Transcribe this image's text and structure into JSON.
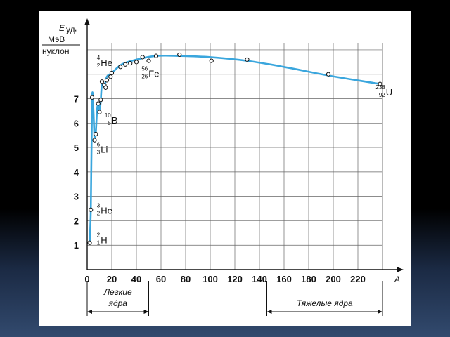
{
  "chart_data": {
    "type": "line",
    "ylabel": {
      "symbol": "E",
      "subscript": "уд",
      "suffix": ",",
      "unit_top": "МэВ",
      "unit_bottom": "нуклон"
    },
    "xlabel": "A",
    "xlim": [
      0,
      240
    ],
    "ylim": [
      0,
      9.2
    ],
    "x_ticks": [
      "0",
      "20",
      "40",
      "60",
      "80",
      "100",
      "120",
      "140",
      "160",
      "180",
      "200",
      "220"
    ],
    "x_tick_values": [
      0,
      20,
      40,
      60,
      80,
      100,
      120,
      140,
      160,
      180,
      200,
      220
    ],
    "y_ticks": [
      "1",
      "2",
      "3",
      "4",
      "5",
      "6",
      "7"
    ],
    "y_tick_values": [
      1,
      2,
      3,
      4,
      5,
      6,
      7
    ],
    "grid": true,
    "curve_color": "#3aa6dd",
    "curve": [
      {
        "x": 2,
        "y": 1.1
      },
      {
        "x": 3,
        "y": 2.6
      },
      {
        "x": 4,
        "y": 7.0
      },
      {
        "x": 5,
        "y": 6.6
      },
      {
        "x": 6,
        "y": 5.3
      },
      {
        "x": 7,
        "y": 5.6
      },
      {
        "x": 8,
        "y": 6.5
      },
      {
        "x": 9,
        "y": 6.8
      },
      {
        "x": 10,
        "y": 6.4
      },
      {
        "x": 11,
        "y": 6.9
      },
      {
        "x": 12,
        "y": 7.6
      },
      {
        "x": 14,
        "y": 7.5
      },
      {
        "x": 16,
        "y": 7.9
      },
      {
        "x": 20,
        "y": 8.05
      },
      {
        "x": 28,
        "y": 8.4
      },
      {
        "x": 40,
        "y": 8.6
      },
      {
        "x": 56,
        "y": 8.75
      },
      {
        "x": 75,
        "y": 8.75
      },
      {
        "x": 100,
        "y": 8.7
      },
      {
        "x": 130,
        "y": 8.55
      },
      {
        "x": 160,
        "y": 8.3
      },
      {
        "x": 196,
        "y": 7.95
      },
      {
        "x": 238,
        "y": 7.6
      }
    ],
    "points": [
      {
        "x": 2,
        "y": 1.1
      },
      {
        "x": 3,
        "y": 2.45
      },
      {
        "x": 4,
        "y": 7.05
      },
      {
        "x": 6,
        "y": 5.3
      },
      {
        "x": 7,
        "y": 5.55
      },
      {
        "x": 9,
        "y": 6.8
      },
      {
        "x": 10,
        "y": 6.45
      },
      {
        "x": 11,
        "y": 6.95
      },
      {
        "x": 12,
        "y": 7.7
      },
      {
        "x": 14,
        "y": 7.55
      },
      {
        "x": 15,
        "y": 7.45
      },
      {
        "x": 16,
        "y": 7.75
      },
      {
        "x": 19,
        "y": 7.9
      },
      {
        "x": 20,
        "y": 8.05
      },
      {
        "x": 27,
        "y": 8.3
      },
      {
        "x": 31,
        "y": 8.4
      },
      {
        "x": 35,
        "y": 8.45
      },
      {
        "x": 40,
        "y": 8.5
      },
      {
        "x": 45,
        "y": 8.7
      },
      {
        "x": 50,
        "y": 8.55
      },
      {
        "x": 56,
        "y": 8.75
      },
      {
        "x": 75,
        "y": 8.8
      },
      {
        "x": 101,
        "y": 8.55
      },
      {
        "x": 130,
        "y": 8.6
      },
      {
        "x": 196,
        "y": 8.0
      },
      {
        "x": 238,
        "y": 7.6
      }
    ],
    "annotations": [
      {
        "id": "he4",
        "mass": "4",
        "charge": "2",
        "symbol": "He",
        "x": 7,
        "y": 8.45
      },
      {
        "id": "fe",
        "mass": "56",
        "charge": "26",
        "symbol": "Fe",
        "x": 43,
        "y": 8.0
      },
      {
        "id": "u",
        "mass": "238",
        "charge": "92",
        "symbol": "U",
        "x": 233,
        "y": 7.25
      },
      {
        "id": "b",
        "mass": "10",
        "charge": "5",
        "symbol": "B",
        "x": 13,
        "y": 6.1
      },
      {
        "id": "li",
        "mass": "6",
        "charge": "3",
        "symbol": "Li",
        "x": 7,
        "y": 4.9
      },
      {
        "id": "he3",
        "mass": "3",
        "charge": "2",
        "symbol": "He",
        "x": 7,
        "y": 2.4
      },
      {
        "id": "h",
        "mass": "2",
        "charge": "1",
        "symbol": "H",
        "x": 7,
        "y": 1.2
      }
    ],
    "regions": [
      {
        "label_line1": "Легкие",
        "label_line2": "ядра",
        "x_from": 0,
        "x_to": 50
      },
      {
        "label_line1": "Тяжелые ядра",
        "label_line2": "",
        "x_from": 146,
        "x_to": 240
      }
    ]
  }
}
